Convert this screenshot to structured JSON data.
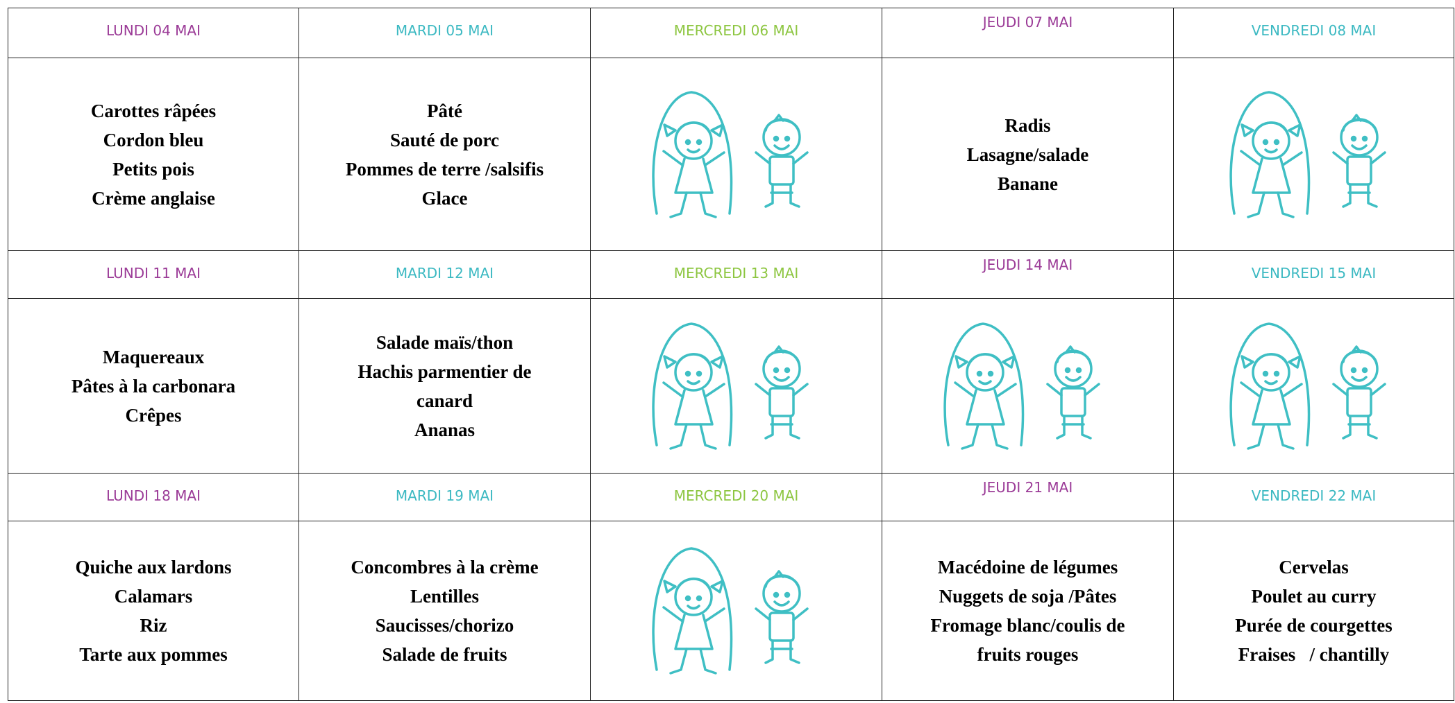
{
  "weeks": [
    {
      "days": [
        {
          "header": "LUNDI 04 MAI",
          "menu": [
            "Carottes râpées",
            "Cordon bleu",
            "Petits pois",
            "Crème anglaise"
          ]
        },
        {
          "header": "MARDI 05 MAI",
          "menu": [
            "Pâté",
            "Sauté de porc",
            "Pommes de terre /salsifis",
            "Glace"
          ]
        },
        {
          "header": "MERCREDI 06 MAI"
        },
        {
          "header": "JEUDI 07 MAI",
          "menu": [
            "Radis",
            "Lasagne/salade",
            "Banane"
          ]
        },
        {
          "header": "VENDREDI 08 MAI"
        }
      ]
    },
    {
      "days": [
        {
          "header": "LUNDI 11 MAI",
          "menu": [
            "Maquereaux",
            "Pâtes à la carbonara",
            "Crêpes"
          ]
        },
        {
          "header": "MARDI 12 MAI",
          "menu": [
            "Salade maïs/thon",
            "Hachis parmentier de",
            "canard",
            "Ananas"
          ]
        },
        {
          "header": "MERCREDI 13 MAI"
        },
        {
          "header": "JEUDI 14 MAI"
        },
        {
          "header": "VENDREDI 15 MAI"
        }
      ]
    },
    {
      "days": [
        {
          "header": "LUNDI 18 MAI",
          "menu": [
            "Quiche aux lardons",
            "Calamars",
            "Riz",
            "Tarte aux pommes"
          ]
        },
        {
          "header": "MARDI 19 MAI",
          "menu": [
            "Concombres à la crème",
            "Lentilles",
            "Saucisses/chorizo",
            "Salade de fruits"
          ]
        },
        {
          "header": "MERCREDI 20 MAI"
        },
        {
          "header": "JEUDI 21 MAI",
          "menu": [
            "Macédoine de légumes",
            "Nuggets de soja /Pâtes",
            "Fromage blanc/coulis de",
            "fruits rouges"
          ]
        },
        {
          "header": "VENDREDI 22 MAI",
          "menu": [
            "Cervelas",
            "Poulet au curry",
            "Purée de courgettes",
            "Fraises   / chantilly"
          ]
        }
      ]
    }
  ]
}
